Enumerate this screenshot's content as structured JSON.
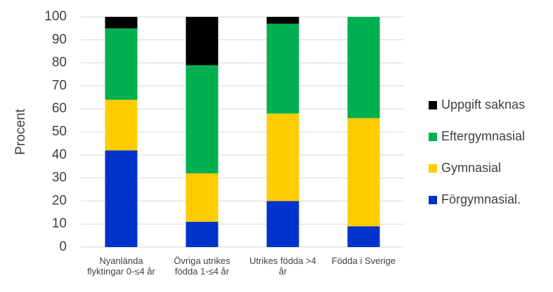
{
  "chart_data": {
    "type": "stacked_bar",
    "y_label": "Procent",
    "categories": [
      "Nyanlända flyktingar 0-≤4 år",
      "Övriga utrikes födda 1-≤4 år",
      "Utrikes födda >4 år",
      "Födda i Sverige"
    ],
    "series": [
      {
        "name": "Förgymnasial.",
        "color": "#0033cc",
        "values": [
          42,
          11,
          20,
          9
        ]
      },
      {
        "name": "Gymnasial",
        "color": "#ffcc00",
        "values": [
          22,
          21,
          38,
          47
        ]
      },
      {
        "name": "Eftergymnasial",
        "color": "#00b050",
        "values": [
          31,
          47,
          39,
          44
        ]
      },
      {
        "name": "Uppgift saknas",
        "color": "#000000",
        "values": [
          5,
          21,
          3,
          0
        ]
      }
    ],
    "ylim": [
      0,
      100
    ],
    "yticks": [
      0,
      10,
      20,
      30,
      40,
      50,
      60,
      70,
      80,
      90,
      100
    ],
    "grid": true,
    "legend": "right"
  }
}
